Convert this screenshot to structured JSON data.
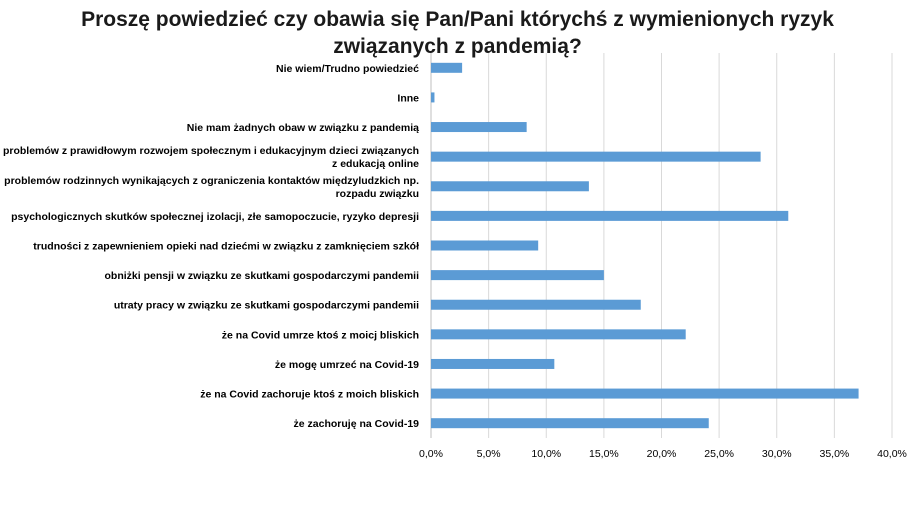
{
  "chart_data": {
    "type": "bar",
    "orientation": "horizontal",
    "title_lines": [
      "Proszę powiedzieć czy obawia się Pan/Pani którychś z wymienionych ryzyk",
      "związanych z pandemią?"
    ],
    "categories": [
      [
        "Nie wiem/Trudno powiedzieć"
      ],
      [
        "Inne"
      ],
      [
        "Nie mam żadnych obaw w związku z pandemią"
      ],
      [
        "problemów z prawidłowym rozwojem społecznym i edukacyjnym dzieci związanych",
        "z edukacją online"
      ],
      [
        "problemów rodzinnych wynikających z ograniczenia kontaktów międzyludzkich np.",
        "rozpadu związku"
      ],
      [
        "psychologicznych skutków społecznej izolacji, złe samopoczucie, ryzyko depresji"
      ],
      [
        "trudności z zapewnieniem opieki nad dziećmi w związku z zamknięciem szkół"
      ],
      [
        "obniżki pensji w związku ze skutkami gospodarczymi pandemii"
      ],
      [
        "utraty pracy w związku ze skutkami gospodarczymi pandemii"
      ],
      [
        "że na Covid umrze ktoś z moicj bliskich"
      ],
      [
        "że mogę umrzeć na Covid-19"
      ],
      [
        "że na Covid zachoruje ktoś z moich bliskich"
      ],
      [
        "że zachoruję na Covid-19"
      ]
    ],
    "values": [
      2.7,
      0.3,
      8.3,
      28.6,
      13.7,
      31.0,
      9.3,
      15.0,
      18.2,
      22.1,
      10.7,
      37.1,
      24.1
    ],
    "xlim": [
      0,
      40
    ],
    "xticks": [
      "0,0%",
      "5,0%",
      "10,0%",
      "15,0%",
      "20,0%",
      "25,0%",
      "30,0%",
      "35,0%",
      "40,0%"
    ],
    "grid": true,
    "bar_color": "#5b9bd5",
    "grid_color": "#d9d9d9"
  }
}
